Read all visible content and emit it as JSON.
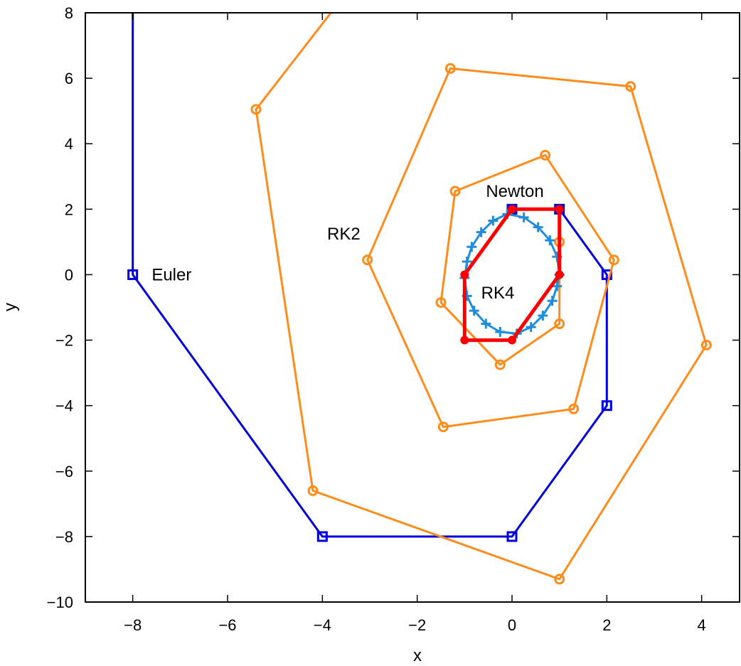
{
  "chart_data": {
    "type": "line",
    "title": "",
    "xlabel": "x",
    "ylabel": "y",
    "xlim": [
      -9,
      4.8
    ],
    "ylim": [
      -10,
      8
    ],
    "xticks": [
      -8,
      -6,
      -4,
      -2,
      0,
      2,
      4
    ],
    "yticks": [
      -10,
      -8,
      -6,
      -4,
      -2,
      0,
      2,
      4,
      6,
      8
    ],
    "tick_text": {
      "x": [
        "−8",
        "−6",
        "−4",
        "−2",
        "0",
        "2",
        "4"
      ],
      "y": [
        "−10",
        "−8",
        "−6",
        "−4",
        "−2",
        "0",
        "2",
        "4",
        "6",
        "8"
      ]
    },
    "grid": false,
    "annotations": [
      {
        "text": "Euler",
        "x": -7.6,
        "y": 0
      },
      {
        "text": "RK2",
        "x": -3.9,
        "y": 1.25
      },
      {
        "text": "Newton",
        "x": -0.55,
        "y": 2.55
      },
      {
        "text": "RK4",
        "x": -0.65,
        "y": -0.55
      }
    ],
    "series": [
      {
        "name": "Euler",
        "color": "#0000dd",
        "marker": "square",
        "points": [
          [
            -8,
            9
          ],
          [
            -8,
            0
          ],
          [
            -4,
            -8
          ],
          [
            0,
            -8
          ],
          [
            2,
            -4
          ],
          [
            2,
            0
          ],
          [
            1,
            2
          ],
          [
            0,
            2
          ]
        ]
      },
      {
        "name": "RK2",
        "color": "#ff8c1a",
        "marker": "circle",
        "points": [
          [
            -3.5,
            8.6
          ],
          [
            -5.4,
            5.05
          ],
          [
            -4.2,
            -6.6
          ],
          [
            1,
            -9.3
          ],
          [
            4.1,
            -2.15
          ],
          [
            2.5,
            5.75
          ],
          [
            -1.3,
            6.3
          ],
          [
            -3.05,
            0.45
          ],
          [
            -1.45,
            -4.65
          ],
          [
            1.3,
            -4.1
          ],
          [
            2.15,
            0.45
          ],
          [
            0.7,
            3.65
          ],
          [
            -1.2,
            2.55
          ],
          [
            -1.5,
            -0.85
          ],
          [
            -0.25,
            -2.75
          ],
          [
            1,
            -1.5
          ],
          [
            1,
            1
          ]
        ]
      },
      {
        "name": "RK4",
        "color": "#1f8cdc",
        "marker": "plus",
        "points": [
          [
            1,
            0
          ],
          [
            0.95,
            0.55
          ],
          [
            0.8,
            1.05
          ],
          [
            0.55,
            1.45
          ],
          [
            0.25,
            1.75
          ],
          [
            -0.1,
            1.85
          ],
          [
            -0.4,
            1.65
          ],
          [
            -0.65,
            1.3
          ],
          [
            -0.85,
            0.85
          ],
          [
            -0.95,
            0.4
          ],
          [
            -1,
            -0.1
          ],
          [
            -0.95,
            -0.65
          ],
          [
            -0.8,
            -1.1
          ],
          [
            -0.55,
            -1.5
          ],
          [
            -0.25,
            -1.75
          ],
          [
            0.1,
            -1.8
          ],
          [
            0.4,
            -1.6
          ],
          [
            0.65,
            -1.25
          ],
          [
            0.85,
            -0.8
          ],
          [
            0.95,
            -0.35
          ],
          [
            1,
            0
          ]
        ]
      },
      {
        "name": "Newton",
        "color": "#ff0000",
        "marker": "dot",
        "points": [
          [
            1,
            0
          ],
          [
            1,
            2
          ],
          [
            0,
            2
          ],
          [
            -1,
            0
          ],
          [
            -1,
            -2
          ],
          [
            0,
            -2
          ],
          [
            1,
            0
          ]
        ]
      }
    ]
  }
}
